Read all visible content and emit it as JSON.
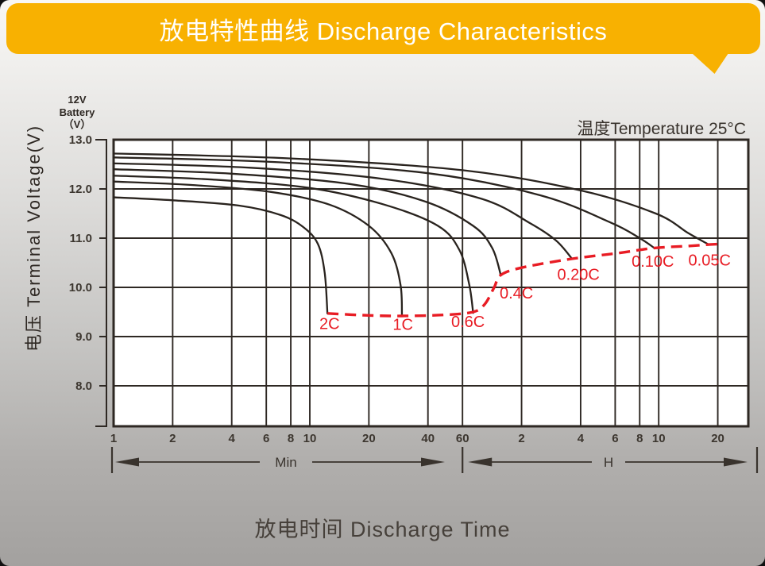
{
  "banner": {
    "title": "放电特性曲线 Discharge Characteristics",
    "color": "#f8b101",
    "text_color": "#ffffff"
  },
  "chart_data": {
    "type": "line",
    "title": "放电特性曲线 Discharge Characteristics",
    "xlabel": "放电时间 Discharge Time",
    "ylabel": "电压 Terminal Voltage(V)",
    "battery_label": {
      "line1": "12V",
      "line2": "Battery",
      "line3": "（V）"
    },
    "temperature_note": "温度Temperature 25°C",
    "x_scale": "log",
    "x_unit": "minutes",
    "xlim_minutes": [
      1,
      1700
    ],
    "ylim": [
      7.2,
      13.0
    ],
    "grid": true,
    "grid_color": "#2e2823",
    "curve_color": "#29231e",
    "cutoff_color": "#e81c24",
    "plot_background": "#ffffff",
    "y_ticks": [
      {
        "label": "13.0",
        "v": 13.0
      },
      {
        "label": "12.0",
        "v": 12.0
      },
      {
        "label": "11.0",
        "v": 11.0
      },
      {
        "label": "10.0",
        "v": 10.0
      },
      {
        "label": "9.0",
        "v": 9.0
      },
      {
        "label": "8.0",
        "v": 8.0
      }
    ],
    "x_ticks": [
      {
        "label": "1",
        "t": 1
      },
      {
        "label": "2",
        "t": 2
      },
      {
        "label": "4",
        "t": 4
      },
      {
        "label": "6",
        "t": 6
      },
      {
        "label": "8",
        "t": 8
      },
      {
        "label": "10",
        "t": 10
      },
      {
        "label": "20",
        "t": 20
      },
      {
        "label": "40",
        "t": 40
      },
      {
        "label": "60",
        "t": 60
      },
      {
        "label": "2",
        "t": 120
      },
      {
        "label": "4",
        "t": 240
      },
      {
        "label": "6",
        "t": 360
      },
      {
        "label": "8",
        "t": 480
      },
      {
        "label": "10",
        "t": 600
      },
      {
        "label": "20",
        "t": 1200
      }
    ],
    "unit_arrows": [
      {
        "label": "Min",
        "from_t": 1,
        "to_t": 60
      },
      {
        "label": "H",
        "from_t": 60,
        "to_t": 1700
      }
    ],
    "series": [
      {
        "name": "2C",
        "points": [
          [
            1,
            11.83
          ],
          [
            2,
            11.77
          ],
          [
            4.4,
            11.66
          ],
          [
            7.1,
            11.47
          ],
          [
            9.3,
            11.22
          ],
          [
            11,
            10.88
          ],
          [
            11.9,
            10.3
          ],
          [
            12.3,
            9.47
          ]
        ]
      },
      {
        "name": "1C",
        "points": [
          [
            1,
            12.15
          ],
          [
            2.5,
            12.08
          ],
          [
            6.3,
            11.94
          ],
          [
            12.6,
            11.68
          ],
          [
            20,
            11.25
          ],
          [
            26,
            10.7
          ],
          [
            29,
            10.05
          ],
          [
            29.5,
            9.44
          ]
        ]
      },
      {
        "name": "0.6C",
        "points": [
          [
            1,
            12.27
          ],
          [
            3.2,
            12.19
          ],
          [
            10,
            12.02
          ],
          [
            24,
            11.68
          ],
          [
            45,
            11.25
          ],
          [
            58,
            10.75
          ],
          [
            65,
            10.05
          ],
          [
            68,
            9.48
          ]
        ]
      },
      {
        "name": "0.4C",
        "points": [
          [
            1,
            12.4
          ],
          [
            4,
            12.31
          ],
          [
            16,
            12.1
          ],
          [
            39,
            11.74
          ],
          [
            68,
            11.25
          ],
          [
            85,
            10.8
          ],
          [
            94,
            10.25
          ]
        ]
      },
      {
        "name": "0.20C",
        "points": [
          [
            1,
            12.52
          ],
          [
            5,
            12.43
          ],
          [
            24,
            12.2
          ],
          [
            75,
            11.8
          ],
          [
            133,
            11.3
          ],
          [
            180,
            10.95
          ],
          [
            217,
            10.58
          ]
        ]
      },
      {
        "name": "0.10C",
        "points": [
          [
            1,
            12.64
          ],
          [
            6.3,
            12.55
          ],
          [
            40,
            12.32
          ],
          [
            150,
            11.87
          ],
          [
            340,
            11.32
          ],
          [
            480,
            11.0
          ],
          [
            570,
            10.8
          ]
        ]
      },
      {
        "name": "0.05C",
        "points": [
          [
            1,
            12.72
          ],
          [
            8,
            12.62
          ],
          [
            60,
            12.38
          ],
          [
            240,
            11.97
          ],
          [
            580,
            11.5
          ],
          [
            850,
            11.1
          ],
          [
            1080,
            10.87
          ]
        ]
      }
    ],
    "cutoff_line": {
      "style": "dashed",
      "points": [
        [
          12.3,
          9.47
        ],
        [
          20,
          9.43
        ],
        [
          29.5,
          9.42
        ],
        [
          48,
          9.44
        ],
        [
          68,
          9.5
        ],
        [
          78,
          9.66
        ],
        [
          87,
          10.0
        ],
        [
          94,
          10.25
        ],
        [
          120,
          10.4
        ],
        [
          217,
          10.58
        ],
        [
          380,
          10.7
        ],
        [
          570,
          10.8
        ],
        [
          850,
          10.84
        ],
        [
          1080,
          10.87
        ],
        [
          1250,
          10.88
        ]
      ]
    },
    "rate_labels": [
      {
        "text": "2C",
        "t": 12.6,
        "v": 9.27
      },
      {
        "text": "1C",
        "t": 29.8,
        "v": 9.25
      },
      {
        "text": "0.6C",
        "t": 64,
        "v": 9.31
      },
      {
        "text": "0.4C",
        "t": 113,
        "v": 9.89
      },
      {
        "text": "0.20C",
        "t": 234,
        "v": 10.27
      },
      {
        "text": "0.10C",
        "t": 560,
        "v": 10.53
      },
      {
        "text": "0.05C",
        "t": 1090,
        "v": 10.56
      }
    ]
  }
}
